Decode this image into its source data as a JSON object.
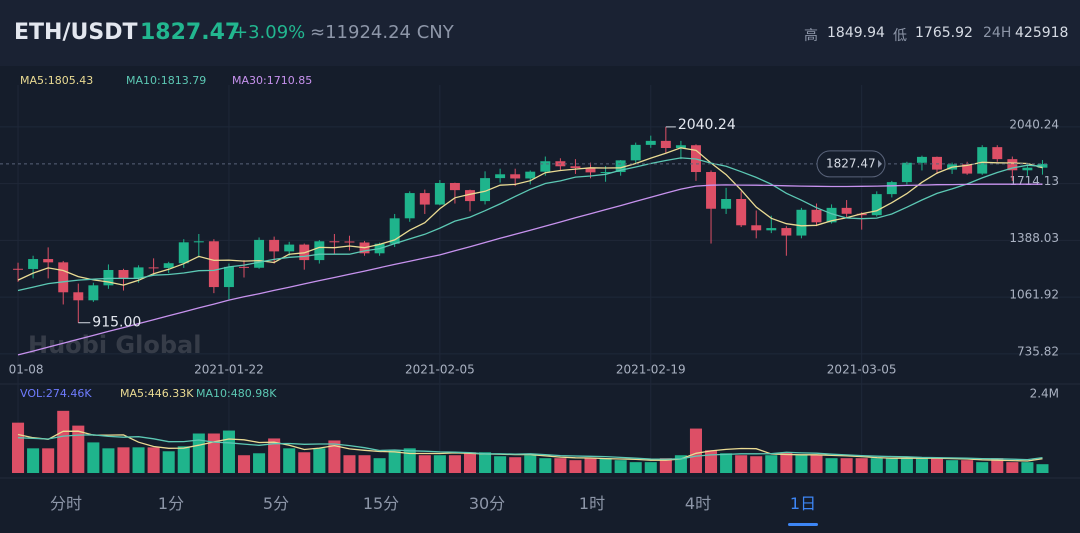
{
  "header": {
    "pair": "ETH/USDT",
    "price": "1827.47",
    "change": "+3.09%",
    "cny": "≈11924.24 CNY",
    "high_label": "高",
    "high": "1849.94",
    "low_label": "低",
    "low": "1765.92",
    "vol_label": "24H",
    "vol": "425918"
  },
  "watermark": "Huobi Global",
  "tabs": [
    "分时",
    "1分",
    "5分",
    "15分",
    "30分",
    "1时",
    "4时",
    "1日"
  ],
  "active_tab": 7,
  "chart_data": [
    {
      "type": "candlestick",
      "up_color": "#1fb48c",
      "down_color": "#dd4f66",
      "categories": [
        "01-08",
        null,
        null,
        null,
        null,
        null,
        null,
        null,
        null,
        null,
        null,
        null,
        null,
        null,
        "2021-01-22",
        null,
        null,
        null,
        null,
        null,
        null,
        null,
        null,
        null,
        null,
        null,
        null,
        null,
        "2021-02-05",
        null,
        null,
        null,
        null,
        null,
        null,
        null,
        null,
        null,
        null,
        null,
        null,
        null,
        "2021-02-19",
        null,
        null,
        null,
        null,
        null,
        null,
        null,
        null,
        null,
        null,
        null,
        null,
        null,
        "2021-03-05",
        null,
        null,
        null,
        null,
        null,
        null,
        null,
        null,
        null,
        null,
        null,
        null
      ],
      "open": [
        1225,
        1224,
        1281,
        1262,
        1090,
        1044,
        1130,
        1218,
        1172,
        1233,
        1230,
        1257,
        1377,
        1383,
        1120,
        1236,
        1231,
        1391,
        1325,
        1364,
        1275,
        1383,
        1382,
        1376,
        1314,
        1369,
        1515,
        1660,
        1594,
        1718,
        1677,
        1614,
        1746,
        1768,
        1744,
        1783,
        1843,
        1814,
        1804,
        1779,
        1781,
        1848,
        1937,
        1960,
        1919,
        1935,
        1781,
        1570,
        1626,
        1475,
        1446,
        1459,
        1416,
        1564,
        1492,
        1575,
        1541,
        1533,
        1654,
        1723,
        1834,
        1868,
        1795,
        1825,
        1772,
        1924,
        1855,
        1791,
        1806
      ],
      "high": [
        1260,
        1300,
        1348,
        1270,
        1140,
        1145,
        1250,
        1225,
        1245,
        1285,
        1265,
        1395,
        1425,
        1395,
        1255,
        1275,
        1405,
        1410,
        1380,
        1370,
        1390,
        1425,
        1415,
        1385,
        1375,
        1540,
        1670,
        1680,
        1735,
        1720,
        1680,
        1785,
        1800,
        1800,
        1790,
        1870,
        1860,
        1855,
        1835,
        1815,
        1850,
        1950,
        1990,
        2040.24,
        1960,
        1940,
        1790,
        1690,
        1670,
        1560,
        1530,
        1470,
        1575,
        1600,
        1595,
        1620,
        1550,
        1670,
        1730,
        1840,
        1875,
        1870,
        1835,
        1840,
        1935,
        1935,
        1870,
        1820,
        1849.94
      ],
      "low": [
        1150,
        1170,
        1170,
        1020,
        915,
        1035,
        1110,
        1100,
        1145,
        1190,
        1200,
        1230,
        1290,
        1085,
        1050,
        1175,
        1225,
        1255,
        1300,
        1220,
        1255,
        1310,
        1330,
        1300,
        1300,
        1350,
        1495,
        1540,
        1590,
        1600,
        1555,
        1595,
        1720,
        1700,
        1710,
        1760,
        1790,
        1770,
        1745,
        1725,
        1760,
        1830,
        1920,
        1890,
        1855,
        1730,
        1370,
        1540,
        1465,
        1400,
        1430,
        1300,
        1400,
        1470,
        1485,
        1515,
        1450,
        1525,
        1635,
        1710,
        1790,
        1770,
        1770,
        1765,
        1765,
        1840,
        1730,
        1760,
        1765.92
      ],
      "close": [
        1224,
        1281,
        1262,
        1090,
        1044,
        1130,
        1218,
        1172,
        1233,
        1230,
        1257,
        1377,
        1383,
        1120,
        1236,
        1231,
        1391,
        1325,
        1364,
        1275,
        1383,
        1382,
        1376,
        1314,
        1369,
        1515,
        1660,
        1594,
        1718,
        1677,
        1614,
        1746,
        1768,
        1744,
        1783,
        1843,
        1814,
        1804,
        1779,
        1781,
        1848,
        1937,
        1960,
        1919,
        1935,
        1781,
        1570,
        1626,
        1475,
        1446,
        1459,
        1416,
        1564,
        1492,
        1575,
        1541,
        1533,
        1654,
        1723,
        1834,
        1868,
        1795,
        1825,
        1772,
        1924,
        1855,
        1791,
        1806,
        1827.47
      ],
      "series": [
        {
          "name": "MA5:1805.43",
          "color": "#eadb93",
          "values": [
            1160,
            1200,
            1230,
            1215,
            1180,
            1161,
            1149,
            1131,
            1159,
            1197,
            1222,
            1254,
            1296,
            1273,
            1275,
            1269,
            1272,
            1261,
            1309,
            1317,
            1348,
            1346,
            1356,
            1346,
            1365,
            1391,
            1447,
            1490,
            1571,
            1633,
            1653,
            1670,
            1705,
            1710,
            1731,
            1777,
            1790,
            1798,
            1805,
            1804,
            1805,
            1830,
            1861,
            1889,
            1920,
            1906,
            1833,
            1766,
            1677,
            1580,
            1515,
            1484,
            1472,
            1475,
            1501,
            1518,
            1541,
            1559,
            1605,
            1657,
            1722,
            1775,
            1809,
            1819,
            1837,
            1834,
            1833,
            1830,
            1805.43
          ]
        },
        {
          "name": "MA10:1813.79",
          "color": "#5cc8b4",
          "values": [
            1100,
            1120,
            1140,
            1150,
            1160,
            1165,
            1170,
            1170,
            1170,
            1188,
            1192,
            1201,
            1214,
            1216,
            1236,
            1246,
            1263,
            1279,
            1291,
            1296,
            1309,
            1309,
            1309,
            1328,
            1341,
            1370,
            1397,
            1423,
            1459,
            1499,
            1522,
            1559,
            1598,
            1641,
            1682,
            1715,
            1730,
            1752,
            1758,
            1768,
            1791,
            1810,
            1830,
            1847,
            1862,
            1856,
            1832,
            1814,
            1783,
            1750,
            1711,
            1659,
            1619,
            1576,
            1541,
            1517,
            1513,
            1516,
            1540,
            1579,
            1620,
            1658,
            1684,
            1712,
            1747,
            1778,
            1804,
            1820,
            1813.79
          ]
        },
        {
          "name": "MA30:1710.85",
          "color": "#c792ee",
          "values": [
            730,
            752,
            775,
            797,
            820,
            842,
            865,
            887,
            910,
            932,
            955,
            977,
            1000,
            1022,
            1045,
            1064,
            1082,
            1101,
            1119,
            1138,
            1157,
            1175,
            1194,
            1212,
            1231,
            1250,
            1268,
            1287,
            1305,
            1329,
            1352,
            1376,
            1400,
            1423,
            1447,
            1470,
            1494,
            1518,
            1541,
            1565,
            1588,
            1612,
            1636,
            1660,
            1683,
            1700,
            1705,
            1707,
            1706,
            1705,
            1704,
            1702,
            1700,
            1699,
            1698,
            1698,
            1699,
            1700,
            1702,
            1704,
            1706,
            1708,
            1709,
            1710,
            1711,
            1711,
            1711,
            1711,
            1710.85
          ]
        }
      ],
      "ylim": [
        586,
        2281
      ],
      "yticks": [
        2040.24,
        1714.13,
        1388.03,
        1061.92,
        735.82
      ],
      "grid": true,
      "max_label_index": 43,
      "min_label": {
        "value": 915,
        "label": "915.00"
      }
    },
    {
      "type": "bar",
      "label": "VOL:274.46K",
      "label_color": "#6f7cff",
      "values": [
        1569000,
        769000,
        769000,
        1938000,
        1477000,
        954000,
        769000,
        800000,
        800000,
        800000,
        677000,
        831000,
        1231000,
        1231000,
        1323000,
        554000,
        615000,
        1077000,
        769000,
        646000,
        769000,
        1015000,
        554000,
        554000,
        462000,
        708000,
        769000,
        554000,
        554000,
        554000,
        646000,
        646000,
        523000,
        492000,
        554000,
        462000,
        462000,
        400000,
        462000,
        462000,
        400000,
        338000,
        338000,
        462000,
        554000,
        1385000,
        708000,
        615000,
        554000,
        523000,
        554000,
        646000,
        554000,
        554000,
        462000,
        462000,
        462000,
        462000,
        462000,
        462000,
        462000,
        462000,
        400000,
        400000,
        338000,
        462000,
        338000,
        338000,
        274460
      ],
      "series": [
        {
          "name": "MA5:446.33K",
          "color": "#eadb93",
          "values": [
            1200000,
            1100000,
            1050000,
            1300000,
            1304000,
            1181000,
            1181000,
            1188000,
            960000,
            825000,
            769000,
            775000,
            868000,
            968000,
            1059000,
            1035000,
            952000,
            960000,
            868000,
            732000,
            775000,
            855000,
            751000,
            708000,
            671000,
            659000,
            609000,
            609000,
            609000,
            628000,
            615000,
            591000,
            585000,
            572000,
            572000,
            535000,
            495000,
            474000,
            468000,
            450000,
            437000,
            425000,
            400000,
            400000,
            437000,
            615000,
            689000,
            735000,
            763000,
            757000,
            591000,
            578000,
            566000,
            566000,
            548000,
            536000,
            510000,
            480000,
            462000,
            462000,
            462000,
            462000,
            450000,
            437000,
            412000,
            400000,
            388000,
            375000,
            446330
          ]
        },
        {
          "name": "MA10:480.98K",
          "color": "#5cc8b4",
          "values": [
            1100000,
            1080000,
            1060000,
            1150000,
            1180000,
            1190000,
            1141000,
            1115000,
            1130000,
            1065000,
            975000,
            978000,
            1028000,
            964000,
            942000,
            902000,
            864000,
            914000,
            918000,
            896000,
            905000,
            903000,
            855000,
            788000,
            701000,
            717000,
            692000,
            680000,
            658000,
            649000,
            637000,
            600000,
            597000,
            590000,
            600000,
            575000,
            543000,
            530000,
            520000,
            511000,
            486000,
            460000,
            437000,
            434000,
            444000,
            526000,
            563000,
            580000,
            600000,
            597000,
            603000,
            646000,
            627000,
            616000,
            586000,
            563000,
            543000,
            523000,
            514000,
            505000,
            486000,
            480000,
            470000,
            462000,
            450000,
            443000,
            431000,
            419000,
            480980
          ]
        }
      ],
      "ylim": [
        0,
        2400000
      ],
      "yticks": [
        {
          "value": 2400000,
          "label": "2.4M"
        }
      ]
    }
  ]
}
